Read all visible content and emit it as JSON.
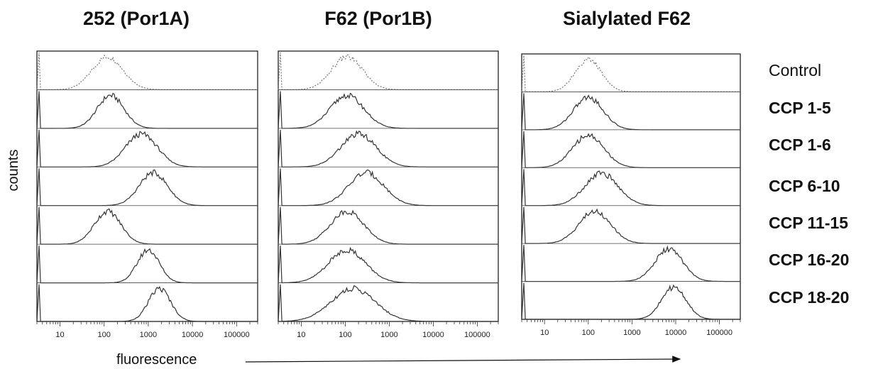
{
  "figure": {
    "ylabel": "counts",
    "xlabel": "fluorescence"
  },
  "chart_data": [
    {
      "type": "area",
      "title": "252 (Por1A)",
      "xscale": "log",
      "xlim": [
        3,
        300000
      ],
      "xticks": [
        10,
        100,
        1000,
        10000,
        100000
      ],
      "series": [
        {
          "name": "Control",
          "peak": 120,
          "width": 0.35,
          "dotted": true
        },
        {
          "name": "CCP 1-5",
          "peak": 140,
          "width": 0.3,
          "dotted": false
        },
        {
          "name": "CCP 1-6",
          "peak": 700,
          "width": 0.36,
          "dotted": false
        },
        {
          "name": "CCP 6-10",
          "peak": 1300,
          "width": 0.32,
          "dotted": false
        },
        {
          "name": "CCP 11-15",
          "peak": 120,
          "width": 0.3,
          "dotted": false
        },
        {
          "name": "CCP 16-20",
          "peak": 1000,
          "width": 0.25,
          "dotted": false
        },
        {
          "name": "CCP 18-20",
          "peak": 1800,
          "width": 0.25,
          "dotted": false
        }
      ]
    },
    {
      "type": "area",
      "title": "F62 (Por1B)",
      "xscale": "log",
      "xlim": [
        3,
        300000
      ],
      "xticks": [
        10,
        100,
        1000,
        10000,
        100000
      ],
      "series": [
        {
          "name": "Control",
          "peak": 110,
          "width": 0.35,
          "dotted": true
        },
        {
          "name": "CCP 1-5",
          "peak": 110,
          "width": 0.38,
          "dotted": false
        },
        {
          "name": "CCP 1-6",
          "peak": 200,
          "width": 0.4,
          "dotted": false
        },
        {
          "name": "CCP 6-10",
          "peak": 300,
          "width": 0.4,
          "dotted": false
        },
        {
          "name": "CCP 11-15",
          "peak": 110,
          "width": 0.38,
          "dotted": false
        },
        {
          "name": "CCP 16-20",
          "peak": 110,
          "width": 0.42,
          "dotted": false
        },
        {
          "name": "CCP 18-20",
          "peak": 150,
          "width": 0.5,
          "dotted": false
        }
      ]
    },
    {
      "type": "area",
      "title": "Sialylated F62",
      "xscale": "log",
      "xlim": [
        3,
        300000
      ],
      "xticks": [
        10,
        100,
        1000,
        10000,
        100000
      ],
      "series": [
        {
          "name": "Control",
          "peak": 100,
          "width": 0.3,
          "dotted": true
        },
        {
          "name": "CCP 1-5",
          "peak": 100,
          "width": 0.34,
          "dotted": false
        },
        {
          "name": "CCP 1-6",
          "peak": 100,
          "width": 0.36,
          "dotted": false
        },
        {
          "name": "CCP 6-10",
          "peak": 200,
          "width": 0.38,
          "dotted": false
        },
        {
          "name": "CCP 11-15",
          "peak": 140,
          "width": 0.36,
          "dotted": false
        },
        {
          "name": "CCP 16-20",
          "peak": 7000,
          "width": 0.32,
          "dotted": false
        },
        {
          "name": "CCP 18-20",
          "peak": 9000,
          "width": 0.28,
          "dotted": false
        }
      ]
    }
  ]
}
